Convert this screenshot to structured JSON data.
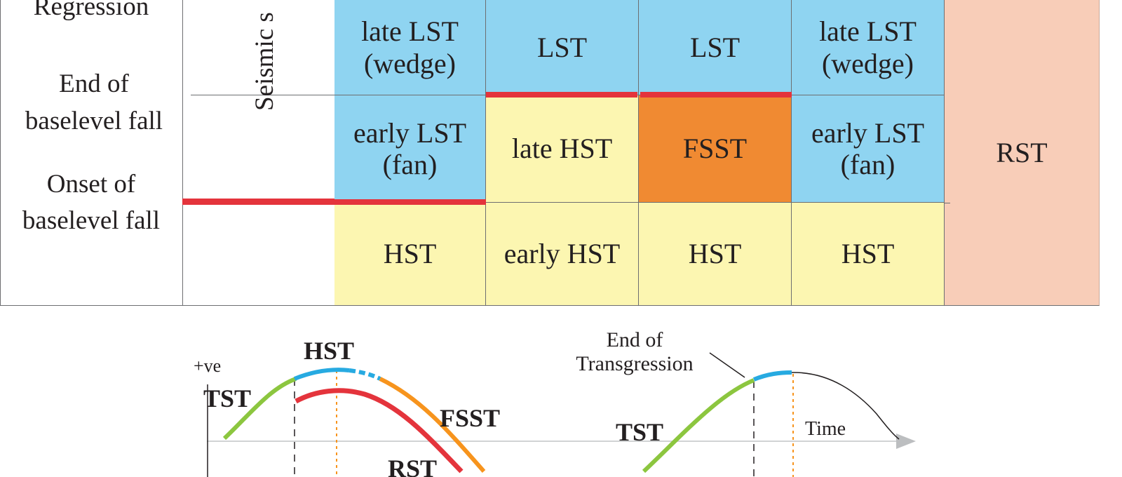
{
  "table": {
    "row_labels": {
      "regression": "Regression",
      "end_fall_1": "End of",
      "end_fall_2": "baselevel fall",
      "onset_fall_1": "Onset of",
      "onset_fall_2": "baselevel fall"
    },
    "column_header": "Seismic s",
    "col1": {
      "upper_1": "late LST",
      "upper_2": "(wedge)",
      "middle_1": "early LST",
      "middle_2": "(fan)",
      "lower": "HST"
    },
    "col2": {
      "upper": "LST",
      "middle": "late HST",
      "lower": "early HST"
    },
    "col3": {
      "upper": "LST",
      "middle": "FSST",
      "lower": "HST"
    },
    "col4": {
      "upper_1": "late LST",
      "upper_2": "(wedge)",
      "middle_1": "early LST",
      "middle_2": "(fan)",
      "lower": "HST"
    },
    "col5": {
      "all": "RST"
    }
  },
  "curve": {
    "axis_positive": "+ve",
    "axis_time": "Time",
    "label_tst_left": "TST",
    "label_hst": "HST",
    "label_fsst": "FSST",
    "label_rst": "RST",
    "label_tst_right": "TST",
    "annotation_1": "End of",
    "annotation_2": "Transgression",
    "colors": {
      "tst": "#8cc63f",
      "hst": "#27aae1",
      "fsst": "#f7941d",
      "rst": "#e4343c",
      "guide": "#f7941d"
    }
  }
}
